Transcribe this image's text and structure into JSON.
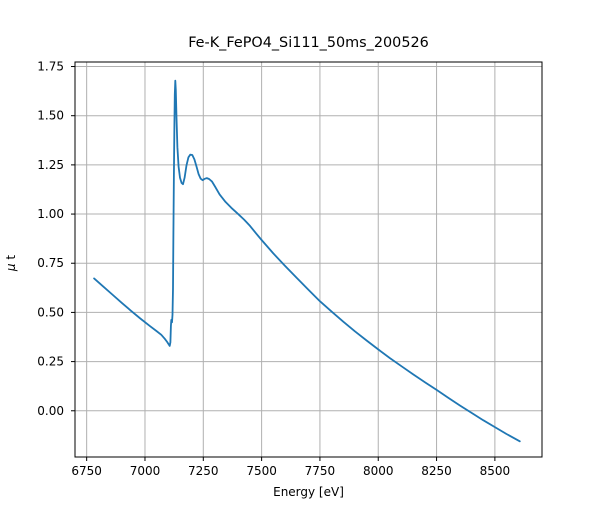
{
  "figure": {
    "background": "#ffffff"
  },
  "chart_data": {
    "type": "line",
    "title": "Fe-K_FePO4_Si111_50ms_200526",
    "xlabel": "Energy [eV]",
    "ylabel": "μ t",
    "ylabel_parts": {
      "symbol": "μ",
      "suffix": " t"
    },
    "xlim": [
      6700,
      8702
    ],
    "ylim": [
      -0.235,
      1.773
    ],
    "x_ticks": [
      6750,
      7000,
      7250,
      7500,
      7750,
      8000,
      8250,
      8500
    ],
    "y_ticks": [
      0.0,
      0.25,
      0.5,
      0.75,
      1.0,
      1.25,
      1.5,
      1.75
    ],
    "y_tick_decimals": 2,
    "grid": true,
    "legend": null,
    "colors": {
      "line": "#1f77b4",
      "grid": "#b0b0b0",
      "spine": "#000000",
      "text": "#000000"
    },
    "series": [
      {
        "name": "mu_t",
        "points": [
          [
            6782,
            0.673
          ],
          [
            6820,
            0.633
          ],
          [
            6860,
            0.591
          ],
          [
            6900,
            0.549
          ],
          [
            6940,
            0.508
          ],
          [
            6980,
            0.469
          ],
          [
            7020,
            0.432
          ],
          [
            7050,
            0.405
          ],
          [
            7070,
            0.386
          ],
          [
            7085,
            0.366
          ],
          [
            7095,
            0.35
          ],
          [
            7102,
            0.337
          ],
          [
            7106,
            0.33
          ],
          [
            7109,
            0.348
          ],
          [
            7111,
            0.43
          ],
          [
            7113,
            0.462
          ],
          [
            7116,
            0.45
          ],
          [
            7118,
            0.488
          ],
          [
            7120,
            0.62
          ],
          [
            7122,
            0.9
          ],
          [
            7124,
            1.2
          ],
          [
            7126,
            1.45
          ],
          [
            7128,
            1.61
          ],
          [
            7130,
            1.678
          ],
          [
            7132,
            1.63
          ],
          [
            7135,
            1.49
          ],
          [
            7139,
            1.34
          ],
          [
            7144,
            1.24
          ],
          [
            7150,
            1.185
          ],
          [
            7157,
            1.158
          ],
          [
            7163,
            1.152
          ],
          [
            7170,
            1.185
          ],
          [
            7178,
            1.248
          ],
          [
            7186,
            1.288
          ],
          [
            7194,
            1.302
          ],
          [
            7203,
            1.3
          ],
          [
            7212,
            1.278
          ],
          [
            7221,
            1.242
          ],
          [
            7230,
            1.203
          ],
          [
            7239,
            1.18
          ],
          [
            7247,
            1.172
          ],
          [
            7256,
            1.179
          ],
          [
            7265,
            1.183
          ],
          [
            7275,
            1.178
          ],
          [
            7287,
            1.166
          ],
          [
            7300,
            1.14
          ],
          [
            7320,
            1.1
          ],
          [
            7345,
            1.062
          ],
          [
            7370,
            1.032
          ],
          [
            7395,
            1.005
          ],
          [
            7425,
            0.972
          ],
          [
            7450,
            0.94
          ],
          [
            7475,
            0.903
          ],
          [
            7500,
            0.868
          ],
          [
            7550,
            0.8
          ],
          [
            7600,
            0.737
          ],
          [
            7650,
            0.676
          ],
          [
            7700,
            0.616
          ],
          [
            7750,
            0.557
          ],
          [
            7800,
            0.504
          ],
          [
            7850,
            0.453
          ],
          [
            7900,
            0.404
          ],
          [
            7950,
            0.357
          ],
          [
            8000,
            0.312
          ],
          [
            8050,
            0.268
          ],
          [
            8100,
            0.226
          ],
          [
            8150,
            0.185
          ],
          [
            8200,
            0.145
          ],
          [
            8250,
            0.106
          ],
          [
            8300,
            0.066
          ],
          [
            8350,
            0.027
          ],
          [
            8400,
            -0.011
          ],
          [
            8450,
            -0.048
          ],
          [
            8500,
            -0.083
          ],
          [
            8550,
            -0.118
          ],
          [
            8607,
            -0.155
          ]
        ]
      }
    ]
  }
}
